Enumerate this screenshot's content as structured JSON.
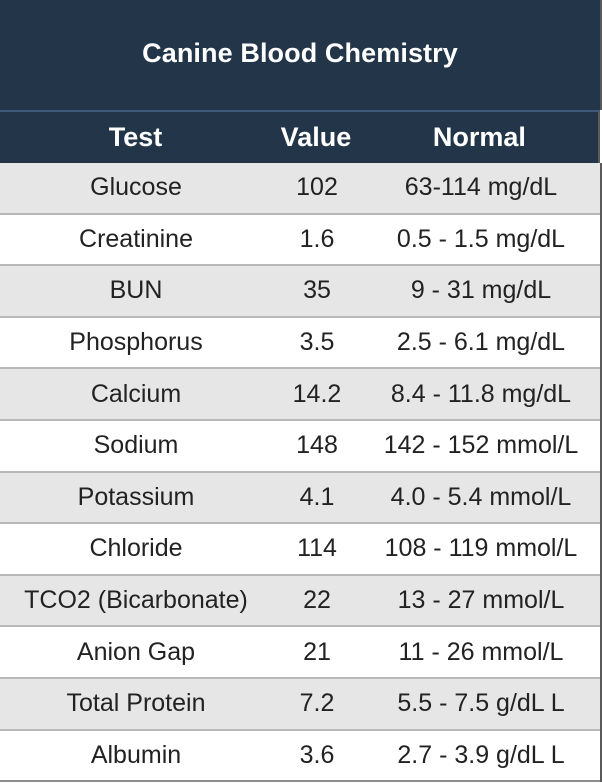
{
  "title": "Canine Blood Chemistry",
  "headers": {
    "test": "Test",
    "value": "Value",
    "normal": "Normal"
  },
  "rows": [
    {
      "test": "Glucose",
      "value": "102",
      "normal": "63-114 mg/dL"
    },
    {
      "test": "Creatinine",
      "value": "1.6",
      "normal": "0.5 - 1.5 mg/dL"
    },
    {
      "test": "BUN",
      "value": "35",
      "normal": "9 - 31 mg/dL"
    },
    {
      "test": "Phosphorus",
      "value": "3.5",
      "normal": "2.5 - 6.1 mg/dL"
    },
    {
      "test": "Calcium",
      "value": "14.2",
      "normal": "8.4 - 11.8 mg/dL"
    },
    {
      "test": "Sodium",
      "value": "148",
      "normal": "142 - 152 mmol/L"
    },
    {
      "test": "Potassium",
      "value": "4.1",
      "normal": "4.0 - 5.4 mmol/L"
    },
    {
      "test": "Chloride",
      "value": "114",
      "normal": "108 - 119 mmol/L"
    },
    {
      "test": "TCO2 (Bicarbonate)",
      "value": "22",
      "normal": "13 - 27 mmol/L"
    },
    {
      "test": "Anion Gap",
      "value": "21",
      "normal": "11 - 26 mmol/L"
    },
    {
      "test": "Total Protein",
      "value": "7.2",
      "normal": "5.5 - 7.5 g/dL L"
    },
    {
      "test": "Albumin",
      "value": "3.6",
      "normal": "2.7 - 3.9 g/dL L"
    }
  ],
  "colors": {
    "header_bg": "#233548",
    "row_alt_bg": "#e6e6e6",
    "row_bg": "#ffffff",
    "text": "#222222"
  }
}
